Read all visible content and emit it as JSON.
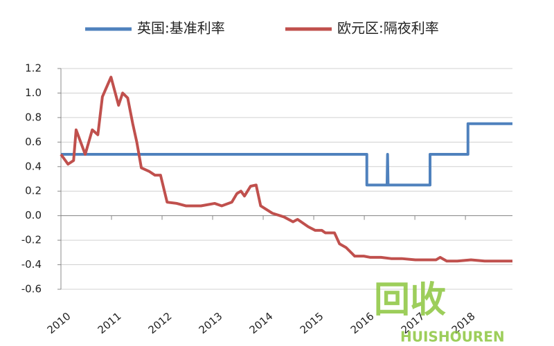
{
  "chart_data": {
    "type": "line",
    "xlim": [
      2010,
      2018.93
    ],
    "xticks": [
      2010,
      2011,
      2012,
      2013,
      2014,
      2015,
      2016,
      2017,
      2018
    ],
    "ylim": [
      -0.6,
      1.2
    ],
    "yticks": [
      1.2,
      {
        "value": 1.0,
        "label": "1.0"
      },
      0.8,
      0.6,
      0.4,
      0.2,
      {
        "value": 0.0,
        "label": "0.0"
      },
      -0.2,
      -0.4,
      -0.6
    ],
    "grid": true,
    "legend": "top",
    "series": [
      {
        "name": "英国:基准利率",
        "color": "#4f81bd",
        "x": [
          2010,
          2016.05,
          2016.05,
          2016.45,
          2016.46,
          2016.47,
          2017.3,
          2017.3,
          2018.05,
          2018.05,
          2018.93
        ],
        "values": [
          0.5,
          0.5,
          0.25,
          0.25,
          0.5,
          0.25,
          0.25,
          0.5,
          0.5,
          0.75,
          0.75
        ]
      },
      {
        "name": "欧元区:隔夜利率",
        "color": "#c0504d",
        "x": [
          2010,
          2010.14,
          2010.25,
          2010.3,
          2010.48,
          2010.62,
          2010.73,
          2010.82,
          2010.99,
          2011.14,
          2011.22,
          2011.32,
          2011.42,
          2011.5,
          2011.59,
          2011.75,
          2011.86,
          2011.97,
          2012.1,
          2012.29,
          2012.47,
          2012.77,
          2013.04,
          2013.18,
          2013.38,
          2013.48,
          2013.56,
          2013.63,
          2013.75,
          2013.86,
          2013.95,
          2014.18,
          2014.41,
          2014.59,
          2014.68,
          2014.89,
          2015.03,
          2015.16,
          2015.23,
          2015.41,
          2015.51,
          2015.64,
          2015.81,
          2015.99,
          2016.12,
          2016.33,
          2016.53,
          2016.74,
          2017.01,
          2017.42,
          2017.5,
          2017.63,
          2017.84,
          2018.11,
          2018.38,
          2018.93
        ],
        "values": [
          0.5,
          0.42,
          0.45,
          0.7,
          0.5,
          0.7,
          0.66,
          0.97,
          1.13,
          0.9,
          1.0,
          0.96,
          0.75,
          0.6,
          0.39,
          0.36,
          0.33,
          0.33,
          0.11,
          0.1,
          0.08,
          0.08,
          0.1,
          0.08,
          0.11,
          0.18,
          0.2,
          0.16,
          0.24,
          0.25,
          0.08,
          0.02,
          -0.01,
          -0.05,
          -0.03,
          -0.09,
          -0.12,
          -0.12,
          -0.14,
          -0.14,
          -0.23,
          -0.26,
          -0.33,
          -0.33,
          -0.34,
          -0.34,
          -0.35,
          -0.35,
          -0.36,
          -0.36,
          -0.34,
          -0.37,
          -0.37,
          -0.36,
          -0.37,
          -0.37
        ]
      }
    ],
    "watermark": {
      "text": "回收",
      "subtext": "HUISHOUREN"
    }
  }
}
